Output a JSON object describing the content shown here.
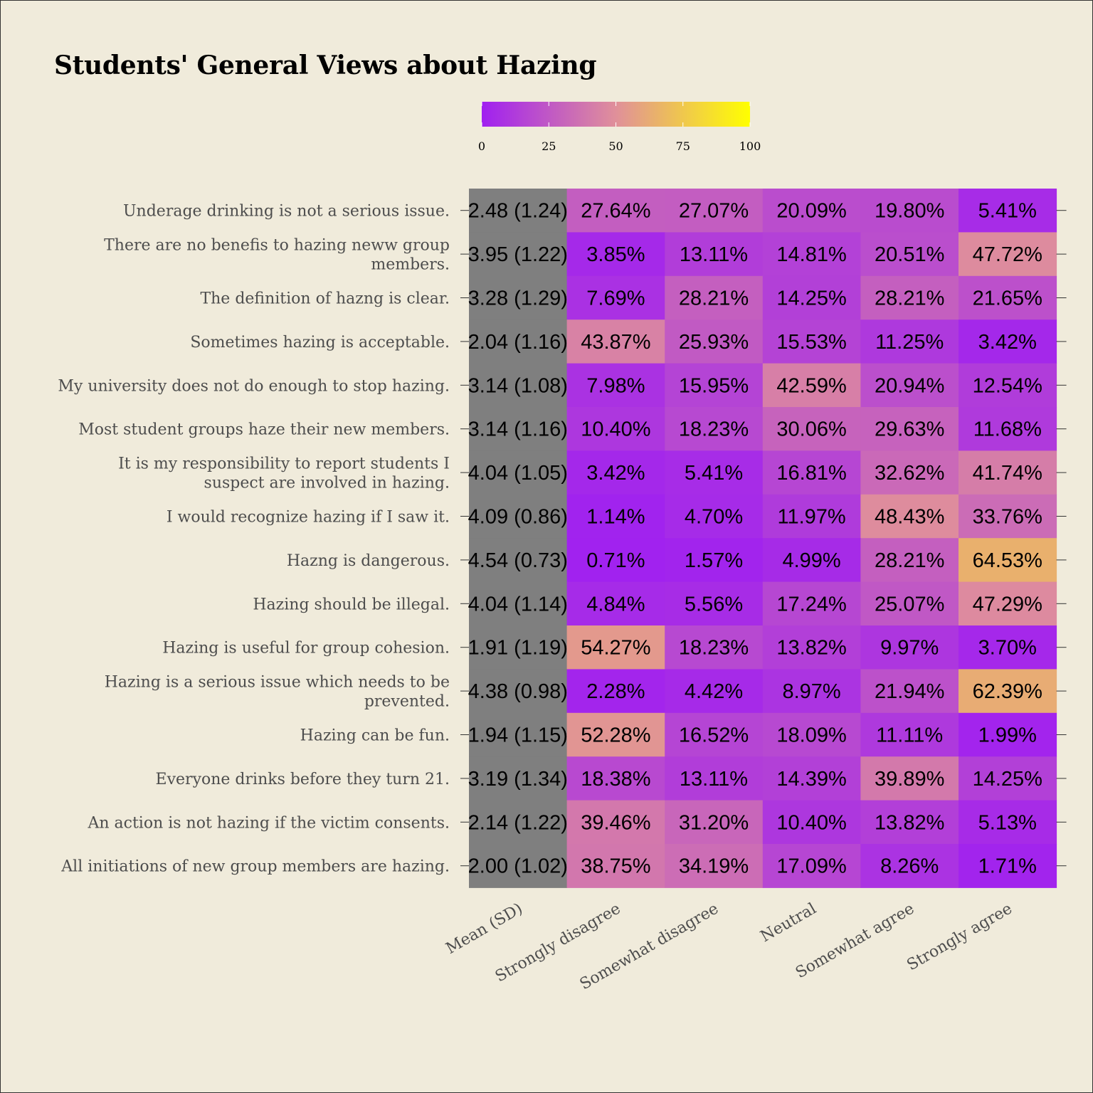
{
  "chart_data": {
    "type": "heatmap",
    "title": "Students' General Views about Hazing",
    "columns": [
      "Mean (SD)",
      "Strongly disagree",
      "Somewhat disagree",
      "Neutral",
      "Somewhat agree",
      "Strongly agree"
    ],
    "legend": {
      "min": 0,
      "max": 100,
      "ticks": [
        "0",
        "25",
        "50",
        "75",
        "100"
      ]
    },
    "colors": {
      "low": "#a020f0",
      "mid": "#e0909a",
      "high": "#ffff00",
      "mean_cell": "#7f7f7f",
      "background": "#f0ebdb"
    },
    "rows": [
      {
        "label": [
          "Underage drinking is not a serious issue."
        ],
        "mean_sd": "2.48 (1.24)",
        "values": [
          27.64,
          27.07,
          20.09,
          19.8,
          5.41
        ],
        "labels": [
          "27.64%",
          "27.07%",
          "20.09%",
          "19.80%",
          "5.41%"
        ]
      },
      {
        "label": [
          "There are no benefis to hazing neww group",
          "members."
        ],
        "mean_sd": "3.95 (1.22)",
        "values": [
          3.85,
          13.11,
          14.81,
          20.51,
          47.72
        ],
        "labels": [
          "3.85%",
          "13.11%",
          "14.81%",
          "20.51%",
          "47.72%"
        ]
      },
      {
        "label": [
          "The definition of hazng is clear."
        ],
        "mean_sd": "3.28 (1.29)",
        "values": [
          7.69,
          28.21,
          14.25,
          28.21,
          21.65
        ],
        "labels": [
          "7.69%",
          "28.21%",
          "14.25%",
          "28.21%",
          "21.65%"
        ]
      },
      {
        "label": [
          "Sometimes hazing is acceptable."
        ],
        "mean_sd": "2.04 (1.16)",
        "values": [
          43.87,
          25.93,
          15.53,
          11.25,
          3.42
        ],
        "labels": [
          "43.87%",
          "25.93%",
          "15.53%",
          "11.25%",
          "3.42%"
        ]
      },
      {
        "label": [
          "My university does not do enough to stop hazing."
        ],
        "mean_sd": "3.14 (1.08)",
        "values": [
          7.98,
          15.95,
          42.59,
          20.94,
          12.54
        ],
        "labels": [
          "7.98%",
          "15.95%",
          "42.59%",
          "20.94%",
          "12.54%"
        ]
      },
      {
        "label": [
          "Most student groups haze their new members."
        ],
        "mean_sd": "3.14 (1.16)",
        "values": [
          10.4,
          18.23,
          30.06,
          29.63,
          11.68
        ],
        "labels": [
          "10.40%",
          "18.23%",
          "30.06%",
          "29.63%",
          "11.68%"
        ]
      },
      {
        "label": [
          "It is my responsibility to report students I",
          "suspect are involved in hazing."
        ],
        "mean_sd": "4.04 (1.05)",
        "values": [
          3.42,
          5.41,
          16.81,
          32.62,
          41.74
        ],
        "labels": [
          "3.42%",
          "5.41%",
          "16.81%",
          "32.62%",
          "41.74%"
        ]
      },
      {
        "label": [
          "I would recognize hazing if I saw it."
        ],
        "mean_sd": "4.09 (0.86)",
        "values": [
          1.14,
          4.7,
          11.97,
          48.43,
          33.76
        ],
        "labels": [
          "1.14%",
          "4.70%",
          "11.97%",
          "48.43%",
          "33.76%"
        ]
      },
      {
        "label": [
          "Hazng is dangerous."
        ],
        "mean_sd": "4.54 (0.73)",
        "values": [
          0.71,
          1.57,
          4.99,
          28.21,
          64.53
        ],
        "labels": [
          "0.71%",
          "1.57%",
          "4.99%",
          "28.21%",
          "64.53%"
        ]
      },
      {
        "label": [
          "Hazing should be illegal."
        ],
        "mean_sd": "4.04 (1.14)",
        "values": [
          4.84,
          5.56,
          17.24,
          25.07,
          47.29
        ],
        "labels": [
          "4.84%",
          "5.56%",
          "17.24%",
          "25.07%",
          "47.29%"
        ]
      },
      {
        "label": [
          "Hazing is useful for group cohesion."
        ],
        "mean_sd": "1.91 (1.19)",
        "values": [
          54.27,
          18.23,
          13.82,
          9.97,
          3.7
        ],
        "labels": [
          "54.27%",
          "18.23%",
          "13.82%",
          "9.97%",
          "3.70%"
        ]
      },
      {
        "label": [
          "Hazing is a serious issue which needs to be",
          "prevented."
        ],
        "mean_sd": "4.38 (0.98)",
        "values": [
          2.28,
          4.42,
          8.97,
          21.94,
          62.39
        ],
        "labels": [
          "2.28%",
          "4.42%",
          "8.97%",
          "21.94%",
          "62.39%"
        ]
      },
      {
        "label": [
          "Hazing can be fun."
        ],
        "mean_sd": "1.94 (1.15)",
        "values": [
          52.28,
          16.52,
          18.09,
          11.11,
          1.99
        ],
        "labels": [
          "52.28%",
          "16.52%",
          "18.09%",
          "11.11%",
          "1.99%"
        ]
      },
      {
        "label": [
          "Everyone drinks before they turn 21."
        ],
        "mean_sd": "3.19 (1.34)",
        "values": [
          18.38,
          13.11,
          14.39,
          39.89,
          14.25
        ],
        "labels": [
          "18.38%",
          "13.11%",
          "14.39%",
          "39.89%",
          "14.25%"
        ]
      },
      {
        "label": [
          "An action is not hazing if the victim consents."
        ],
        "mean_sd": "2.14 (1.22)",
        "values": [
          39.46,
          31.2,
          10.4,
          13.82,
          5.13
        ],
        "labels": [
          "39.46%",
          "31.20%",
          "10.40%",
          "13.82%",
          "5.13%"
        ]
      },
      {
        "label": [
          "All initiations of new group members are hazing."
        ],
        "mean_sd": "2.00 (1.02)",
        "values": [
          38.75,
          34.19,
          17.09,
          8.26,
          1.71
        ],
        "labels": [
          "38.75%",
          "34.19%",
          "17.09%",
          "8.26%",
          "1.71%"
        ]
      }
    ]
  }
}
